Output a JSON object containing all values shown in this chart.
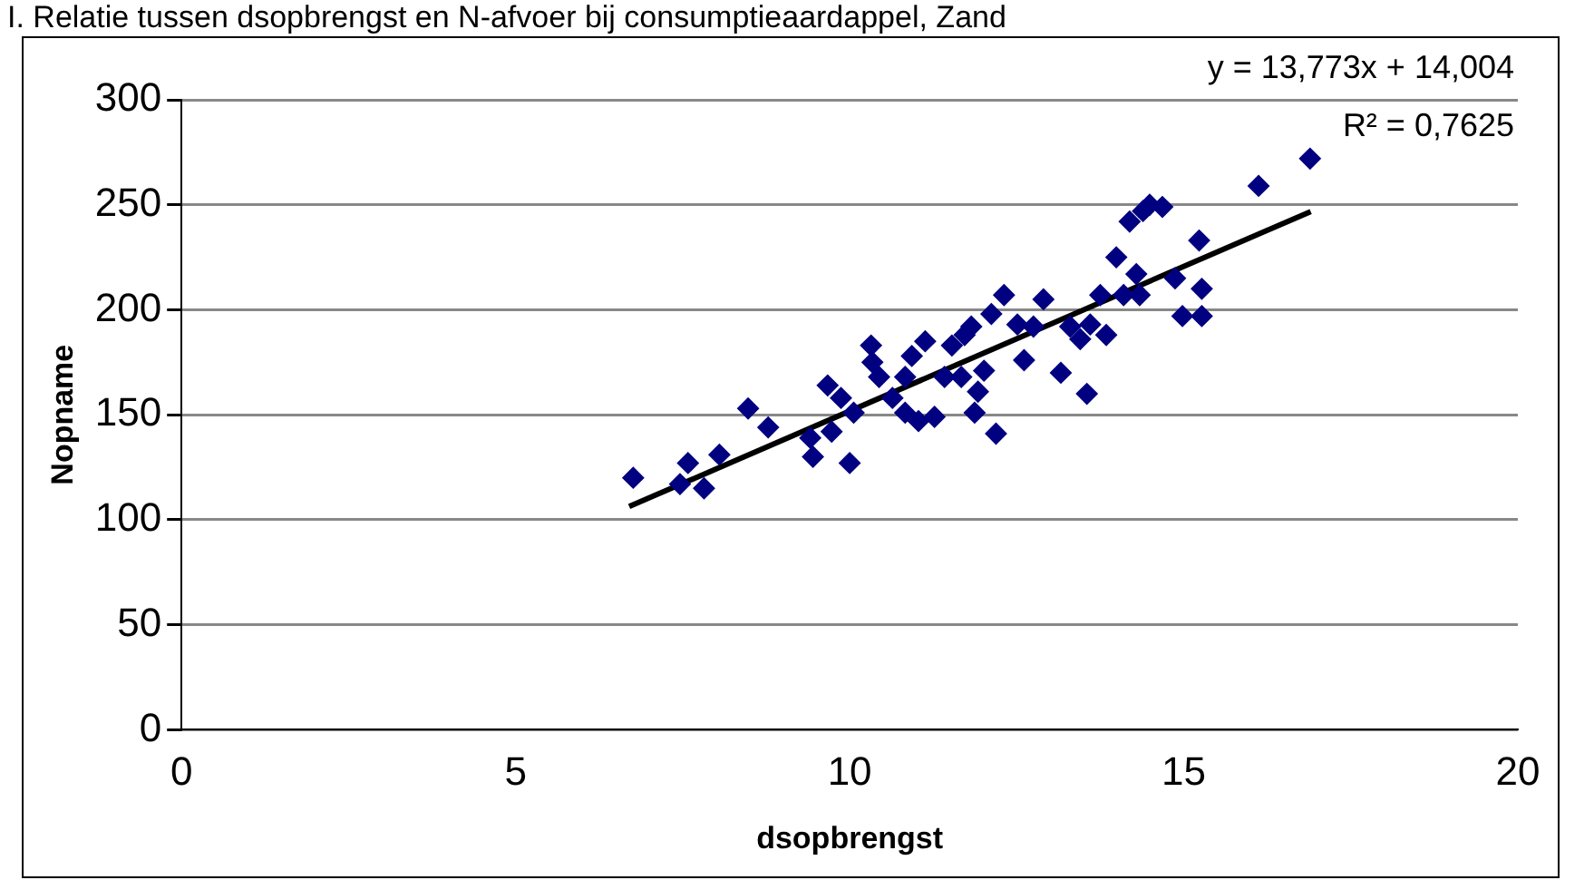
{
  "chart_data": {
    "type": "scatter",
    "title": "I. Relatie tussen dsopbrengst en N-afvoer bij consumptieaardappel, Zand",
    "xlabel": "dsopbrengst",
    "ylabel": "Nopname",
    "xlim": [
      0,
      20
    ],
    "xticks": [
      0,
      5,
      10,
      15,
      20
    ],
    "ylim": [
      0,
      300
    ],
    "yticks": [
      0,
      50,
      100,
      150,
      200,
      250,
      300
    ],
    "grid": "y",
    "legend": false,
    "marker": "diamond",
    "annotations": [
      "y = 13,773x + 14,004",
      "R² = 0,7625"
    ],
    "series": [
      {
        "color": "#000080",
        "x": [
          6.76,
          7.58,
          7.46,
          7.82,
          8.05,
          8.48,
          8.78,
          9.41,
          9.45,
          9.67,
          9.73,
          10.0,
          9.87,
          10.06,
          10.32,
          10.34,
          10.44,
          10.64,
          10.83,
          11.03,
          11.27,
          11.13,
          10.93,
          10.83,
          11.53,
          11.42,
          11.72,
          11.82,
          11.67,
          11.92,
          11.87,
          12.01,
          12.12,
          12.31,
          12.19,
          12.51,
          12.61,
          12.75,
          12.9,
          13.16,
          13.3,
          13.45,
          13.55,
          13.6,
          13.84,
          13.75,
          13.99,
          14.1,
          14.29,
          14.34,
          14.19,
          14.39,
          14.49,
          14.68,
          14.87,
          15.23,
          15.27,
          14.98,
          15.27,
          16.12,
          16.89
        ],
        "values": [
          120,
          127,
          117,
          115,
          131,
          153,
          144,
          139,
          130,
          164,
          142,
          127,
          158,
          151,
          183,
          175,
          168,
          158,
          151,
          147,
          149,
          185,
          178,
          168,
          183,
          168,
          188,
          192,
          168,
          161,
          151,
          171,
          198,
          207,
          141,
          193,
          176,
          192,
          205,
          170,
          192,
          186,
          160,
          193,
          188,
          207,
          225,
          207,
          217,
          207,
          242,
          247,
          250,
          249,
          215,
          233,
          210,
          197,
          197,
          259,
          272
        ]
      },
      {
        "type": "line",
        "color": "#000000",
        "marker": "none",
        "x": [
          6.7,
          16.9
        ],
        "values": [
          106.3,
          246.8
        ]
      }
    ]
  }
}
